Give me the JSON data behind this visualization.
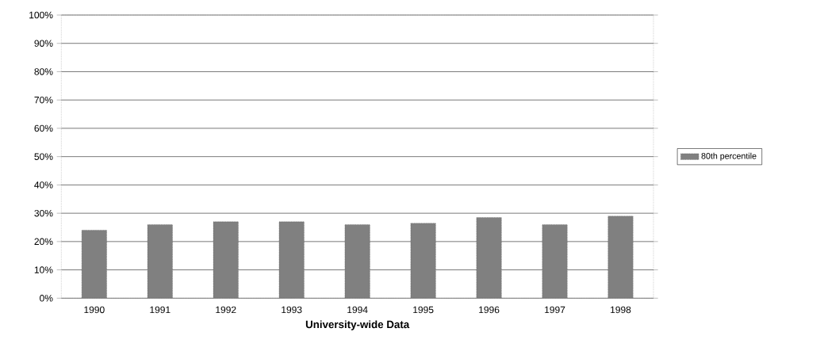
{
  "chart_data": {
    "type": "bar",
    "xlabel": "University-wide Data",
    "categories": [
      "1990",
      "1991",
      "1992",
      "1993",
      "1994",
      "1995",
      "1996",
      "1997",
      "1998"
    ],
    "series": [
      {
        "name": "80th percentile",
        "color": "#808080",
        "values": [
          24,
          26,
          27,
          27,
          26,
          26.5,
          28.5,
          26,
          29
        ]
      }
    ],
    "ylim": [
      0,
      100
    ],
    "yticks": [
      {
        "value": 0,
        "label": "0%"
      },
      {
        "value": 10,
        "label": "10%"
      },
      {
        "value": 20,
        "label": "20%"
      },
      {
        "value": 30,
        "label": "30%"
      },
      {
        "value": 40,
        "label": "40%"
      },
      {
        "value": 50,
        "label": "50%"
      },
      {
        "value": 60,
        "label": "60%"
      },
      {
        "value": 70,
        "label": "70%"
      },
      {
        "value": 80,
        "label": "80%"
      },
      {
        "value": 90,
        "label": "90%"
      },
      {
        "value": 100,
        "label": "100%"
      }
    ],
    "grid": "y",
    "legend": "right"
  }
}
